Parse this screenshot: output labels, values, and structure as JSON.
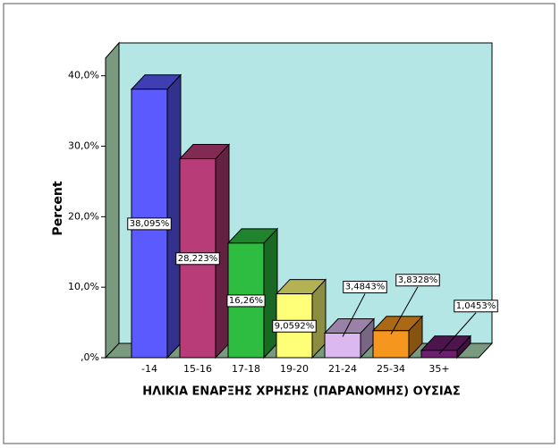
{
  "chart_data": {
    "type": "bar3d",
    "categories": [
      "-14",
      "15-16",
      "17-18",
      "19-20",
      "21-24",
      "25-34",
      "35+"
    ],
    "values": [
      38.095,
      28.223,
      16.26,
      9.0592,
      3.4843,
      3.8328,
      1.0453
    ],
    "value_labels": [
      "38,095%",
      "28,223%",
      "16,26%",
      "9,0592%",
      "3,4843%",
      "3,8328%",
      "1,0453%"
    ],
    "colors": [
      "#5a5aff",
      "#b83c78",
      "#2ebd40",
      "#ffff78",
      "#dcb8f0",
      "#f5961e",
      "#6e1e6e"
    ],
    "ylim": [
      0,
      42.5
    ],
    "yticks": [
      {
        "value": 0,
        "label": ",0%"
      },
      {
        "value": 10,
        "label": "10,0%"
      },
      {
        "value": 20,
        "label": "20,0%"
      },
      {
        "value": 30,
        "label": "30,0%"
      },
      {
        "value": 40,
        "label": "40,0%"
      }
    ],
    "y_label": "Percent",
    "x_label": "ΗΛΙΚΙΑ ΕΝΑΡΞΗΣ ΧΡΗΣΗΣ (ΠΑΡΑΝΟΜΗΣ) ΟΥΣΙΑΣ"
  }
}
